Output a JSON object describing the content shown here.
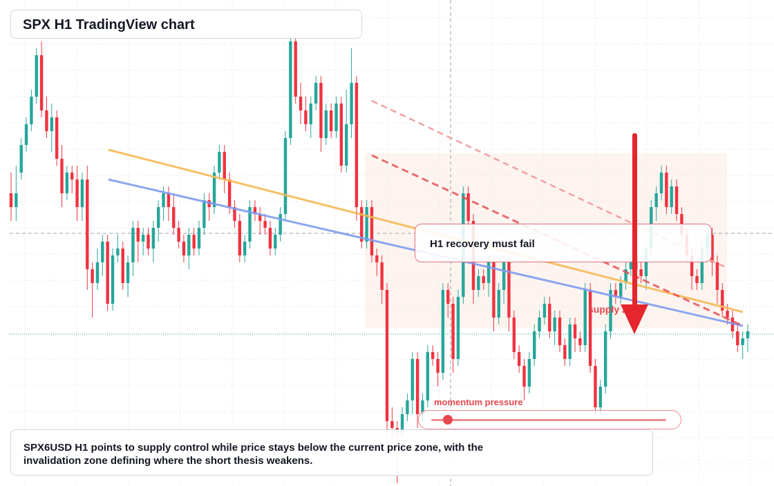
{
  "title": "SPX H1 TradingView chart",
  "caption": "SPX6USD H1 points to supply control while price stays below the current price zone, with the invalidation zone defining where the short thesis weakens.",
  "annotations": {
    "recovery": "H1 recovery must fail",
    "supply": "supply zone",
    "momentum": "momentum pressure",
    "momentum_level": 0.07
  },
  "colors": {
    "up": "#26a69a",
    "down": "#ef3340",
    "orange_trendline": "#f7b955",
    "blue_trendline": "#7f9df0",
    "red_dashed": "#e5484d",
    "supply_zone_fill": "#fdf3ee",
    "arrow": "#e5262d"
  },
  "chart_data": {
    "type": "candlestick",
    "title": "SPX H1 TradingView chart",
    "symbol": "SPX6USD",
    "timeframe": "H1",
    "x_axis": "unlabeled",
    "y_axis": "unlabeled",
    "grid": true,
    "levels": {
      "high_range": 58,
      "low_range": 690,
      "crosshair_level": 338,
      "current_price_level": 484
    },
    "candles": [
      [
        280,
        300,
        250,
        320
      ],
      [
        300,
        280,
        240,
        320
      ],
      [
        250,
        210,
        200,
        260
      ],
      [
        210,
        180,
        170,
        220
      ],
      [
        180,
        140,
        130,
        190
      ],
      [
        140,
        80,
        70,
        150
      ],
      [
        80,
        160,
        60,
        170
      ],
      [
        160,
        190,
        140,
        200
      ],
      [
        190,
        170,
        150,
        220
      ],
      [
        170,
        230,
        160,
        240
      ],
      [
        230,
        280,
        210,
        300
      ],
      [
        280,
        250,
        240,
        290
      ],
      [
        250,
        260,
        240,
        280
      ],
      [
        260,
        300,
        240,
        320
      ],
      [
        300,
        260,
        250,
        320
      ],
      [
        260,
        390,
        240,
        420
      ],
      [
        390,
        410,
        380,
        460
      ],
      [
        410,
        380,
        360,
        420
      ],
      [
        380,
        350,
        340,
        400
      ],
      [
        350,
        440,
        340,
        450
      ],
      [
        440,
        370,
        360,
        450
      ],
      [
        370,
        360,
        340,
        380
      ],
      [
        360,
        410,
        350,
        420
      ],
      [
        410,
        380,
        370,
        430
      ],
      [
        380,
        330,
        320,
        400
      ],
      [
        330,
        350,
        320,
        380
      ],
      [
        350,
        340,
        330,
        370
      ],
      [
        340,
        360,
        330,
        370
      ],
      [
        360,
        330,
        320,
        380
      ],
      [
        330,
        300,
        290,
        350
      ],
      [
        300,
        280,
        270,
        320
      ],
      [
        280,
        300,
        270,
        320
      ],
      [
        300,
        330,
        280,
        340
      ],
      [
        330,
        350,
        320,
        360
      ],
      [
        350,
        370,
        340,
        380
      ],
      [
        370,
        340,
        330,
        390
      ],
      [
        340,
        360,
        330,
        370
      ],
      [
        360,
        330,
        320,
        370
      ],
      [
        330,
        290,
        280,
        340
      ],
      [
        290,
        300,
        280,
        320
      ],
      [
        300,
        250,
        240,
        310
      ],
      [
        250,
        220,
        210,
        260
      ],
      [
        220,
        260,
        210,
        280
      ],
      [
        260,
        300,
        250,
        310
      ],
      [
        300,
        320,
        290,
        330
      ],
      [
        320,
        370,
        310,
        380
      ],
      [
        370,
        350,
        340,
        380
      ],
      [
        350,
        300,
        290,
        360
      ],
      [
        300,
        310,
        290,
        320
      ],
      [
        310,
        320,
        300,
        340
      ],
      [
        320,
        330,
        310,
        340
      ],
      [
        330,
        360,
        320,
        370
      ],
      [
        360,
        340,
        330,
        370
      ],
      [
        340,
        310,
        300,
        350
      ],
      [
        310,
        200,
        190,
        320
      ],
      [
        200,
        60,
        50,
        210
      ],
      [
        60,
        140,
        50,
        150
      ],
      [
        140,
        160,
        120,
        180
      ],
      [
        160,
        180,
        140,
        190
      ],
      [
        180,
        150,
        140,
        200
      ],
      [
        150,
        120,
        110,
        160
      ],
      [
        120,
        200,
        110,
        220
      ],
      [
        200,
        160,
        150,
        210
      ],
      [
        160,
        190,
        150,
        200
      ],
      [
        190,
        150,
        140,
        200
      ],
      [
        150,
        240,
        140,
        250
      ],
      [
        240,
        180,
        130,
        250
      ],
      [
        180,
        120,
        70,
        200
      ],
      [
        120,
        300,
        110,
        320
      ],
      [
        300,
        350,
        290,
        360
      ],
      [
        350,
        300,
        290,
        360
      ],
      [
        300,
        370,
        290,
        380
      ],
      [
        370,
        380,
        360,
        400
      ],
      [
        380,
        420,
        370,
        440
      ],
      [
        420,
        610,
        410,
        650
      ],
      [
        610,
        620,
        590,
        640
      ],
      [
        620,
        630,
        610,
        700
      ],
      [
        630,
        600,
        590,
        650
      ],
      [
        600,
        580,
        570,
        610
      ],
      [
        580,
        520,
        510,
        600
      ],
      [
        520,
        600,
        510,
        620
      ],
      [
        600,
        580,
        570,
        610
      ],
      [
        580,
        510,
        500,
        590
      ],
      [
        510,
        520,
        500,
        530
      ],
      [
        520,
        540,
        510,
        560
      ],
      [
        540,
        420,
        410,
        550
      ],
      [
        420,
        440,
        410,
        460
      ],
      [
        440,
        520,
        430,
        540
      ],
      [
        520,
        430,
        420,
        530
      ],
      [
        430,
        280,
        270,
        440
      ],
      [
        280,
        320,
        270,
        330
      ],
      [
        320,
        420,
        310,
        440
      ],
      [
        420,
        400,
        390,
        430
      ],
      [
        400,
        410,
        390,
        420
      ],
      [
        410,
        380,
        370,
        430
      ],
      [
        380,
        460,
        370,
        480
      ],
      [
        460,
        420,
        410,
        470
      ],
      [
        420,
        380,
        370,
        440
      ],
      [
        380,
        460,
        370,
        480
      ],
      [
        460,
        510,
        450,
        520
      ],
      [
        510,
        530,
        500,
        540
      ],
      [
        530,
        560,
        520,
        580
      ],
      [
        560,
        520,
        510,
        570
      ],
      [
        520,
        480,
        470,
        530
      ],
      [
        480,
        460,
        450,
        490
      ],
      [
        460,
        440,
        430,
        470
      ],
      [
        440,
        480,
        430,
        490
      ],
      [
        480,
        460,
        450,
        500
      ],
      [
        460,
        500,
        450,
        510
      ],
      [
        500,
        520,
        490,
        530
      ],
      [
        520,
        470,
        460,
        530
      ],
      [
        470,
        490,
        460,
        510
      ],
      [
        490,
        500,
        480,
        510
      ],
      [
        500,
        420,
        410,
        510
      ],
      [
        420,
        530,
        410,
        540
      ],
      [
        530,
        590,
        520,
        600
      ],
      [
        590,
        560,
        550,
        600
      ],
      [
        560,
        480,
        470,
        570
      ],
      [
        480,
        420,
        410,
        490
      ],
      [
        420,
        430,
        410,
        440
      ],
      [
        430,
        410,
        400,
        440
      ],
      [
        410,
        390,
        380,
        420
      ],
      [
        390,
        370,
        360,
        400
      ],
      [
        370,
        390,
        360,
        410
      ],
      [
        390,
        400,
        380,
        410
      ],
      [
        400,
        360,
        350,
        420
      ],
      [
        360,
        300,
        290,
        370
      ],
      [
        300,
        280,
        270,
        320
      ],
      [
        280,
        250,
        240,
        290
      ],
      [
        250,
        300,
        240,
        310
      ],
      [
        300,
        270,
        260,
        310
      ],
      [
        270,
        310,
        260,
        320
      ],
      [
        310,
        340,
        300,
        350
      ],
      [
        340,
        370,
        330,
        380
      ],
      [
        370,
        400,
        360,
        420
      ],
      [
        400,
        410,
        390,
        420
      ],
      [
        410,
        360,
        350,
        420
      ],
      [
        360,
        340,
        330,
        380
      ],
      [
        340,
        380,
        330,
        400
      ],
      [
        380,
        420,
        370,
        440
      ],
      [
        420,
        450,
        410,
        460
      ],
      [
        450,
        460,
        440,
        470
      ],
      [
        460,
        480,
        450,
        490
      ],
      [
        480,
        500,
        470,
        510
      ],
      [
        500,
        490,
        480,
        520
      ],
      [
        490,
        480,
        470,
        510
      ]
    ]
  }
}
